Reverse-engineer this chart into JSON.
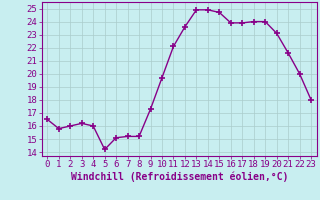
{
  "x": [
    0,
    1,
    2,
    3,
    4,
    5,
    6,
    7,
    8,
    9,
    10,
    11,
    12,
    13,
    14,
    15,
    16,
    17,
    18,
    19,
    20,
    21,
    22,
    23
  ],
  "y": [
    16.5,
    15.8,
    16.0,
    16.2,
    16.0,
    14.2,
    15.1,
    15.2,
    15.2,
    17.3,
    19.7,
    22.1,
    23.6,
    24.9,
    24.9,
    24.7,
    23.9,
    23.9,
    24.0,
    24.0,
    23.1,
    21.6,
    20.0,
    18.0
  ],
  "line_color": "#880088",
  "marker": "+",
  "markersize": 4,
  "markeredgewidth": 1.2,
  "linewidth": 1.0,
  "bg_color": "#c8eef0",
  "grid_color": "#aacccc",
  "xlabel": "Windchill (Refroidissement éolien,°C)",
  "xlabel_fontsize": 7,
  "yticks": [
    14,
    15,
    16,
    17,
    18,
    19,
    20,
    21,
    22,
    23,
    24,
    25
  ],
  "xticks": [
    0,
    1,
    2,
    3,
    4,
    5,
    6,
    7,
    8,
    9,
    10,
    11,
    12,
    13,
    14,
    15,
    16,
    17,
    18,
    19,
    20,
    21,
    22,
    23
  ],
  "xlim": [
    -0.5,
    23.5
  ],
  "ylim": [
    13.7,
    25.5
  ],
  "tick_color": "#880088",
  "tick_fontsize": 6.5,
  "spine_color": "#880088"
}
